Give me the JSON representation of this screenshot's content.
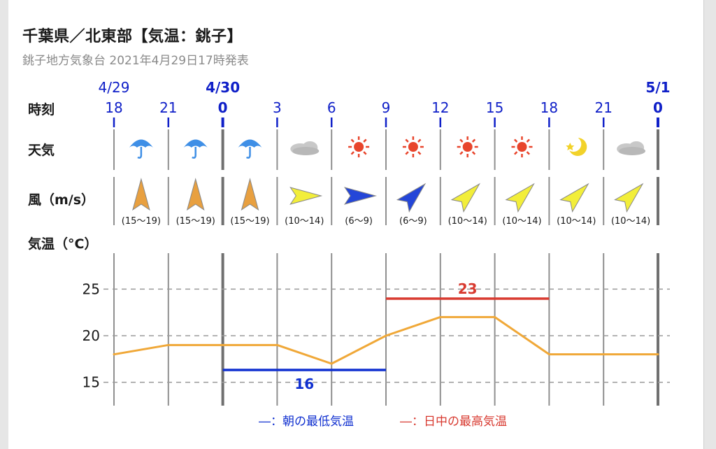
{
  "header": {
    "title": "千葉県／北東部【気温：銚子】",
    "subtitle": "銚子地方気象台 2021年4月29日17時発表"
  },
  "row_labels": {
    "time": "時刻",
    "weather": "天気",
    "wind": "風（m/s）",
    "temp": "気温（°C）"
  },
  "dates": [
    {
      "label": "4/29",
      "at": 0,
      "bold": false
    },
    {
      "label": "4/30",
      "at": 2,
      "bold": true
    },
    {
      "label": "5/1",
      "at": 10,
      "bold": true
    }
  ],
  "hours": [
    "18",
    "21",
    "0",
    "3",
    "6",
    "9",
    "12",
    "15",
    "18",
    "21",
    "0"
  ],
  "weather_icons": [
    "umbrella-icon",
    "umbrella-icon",
    "umbrella-icon",
    "cloud-icon",
    "sun-icon",
    "sun-icon",
    "sun-icon",
    "sun-icon",
    "moon-icon",
    "cloud-icon"
  ],
  "wind": [
    {
      "dir": "N",
      "speed": "(15〜19)",
      "color": "#e8a040"
    },
    {
      "dir": "N",
      "speed": "(15〜19)",
      "color": "#e8a040"
    },
    {
      "dir": "N",
      "speed": "(15〜19)",
      "color": "#e8a040"
    },
    {
      "dir": "E",
      "speed": "(10〜14)",
      "color": "#f2ee3a"
    },
    {
      "dir": "E",
      "speed": "(6〜9)",
      "color": "#2446d8"
    },
    {
      "dir": "NE",
      "speed": "(6〜9)",
      "color": "#2446d8"
    },
    {
      "dir": "NE",
      "speed": "(10〜14)",
      "color": "#f2ee3a"
    },
    {
      "dir": "NE",
      "speed": "(10〜14)",
      "color": "#f2ee3a"
    },
    {
      "dir": "NE",
      "speed": "(10〜14)",
      "color": "#f2ee3a"
    },
    {
      "dir": "NE",
      "speed": "(10〜14)",
      "color": "#f2ee3a"
    }
  ],
  "chart_data": {
    "type": "line",
    "x": [
      "18",
      "21",
      "0",
      "3",
      "6",
      "9",
      "12",
      "15",
      "18",
      "21",
      "0"
    ],
    "series": [
      {
        "values": [
          18,
          19,
          19,
          19,
          17,
          20,
          22,
          22,
          18,
          18,
          18
        ],
        "color": "#f0a838"
      }
    ],
    "yticks": [
      15,
      20,
      25
    ],
    "ylim": [
      12.5,
      27.5
    ],
    "min_temp": {
      "value": 16,
      "label": "16",
      "from": 2,
      "to": 5,
      "color": "#1030d0"
    },
    "max_temp": {
      "value": 23,
      "label": "23",
      "from": 5,
      "to": 8,
      "color": "#d83a30"
    },
    "legend": [
      {
        "label": "―：朝の最低気温",
        "color": "#1030d0"
      },
      {
        "label": "―：日中の最高気温",
        "color": "#d83a30"
      }
    ]
  },
  "colors": {
    "accent_blue": "#1020c8",
    "grid": "#9a9a9a",
    "line": "#f0a838"
  }
}
